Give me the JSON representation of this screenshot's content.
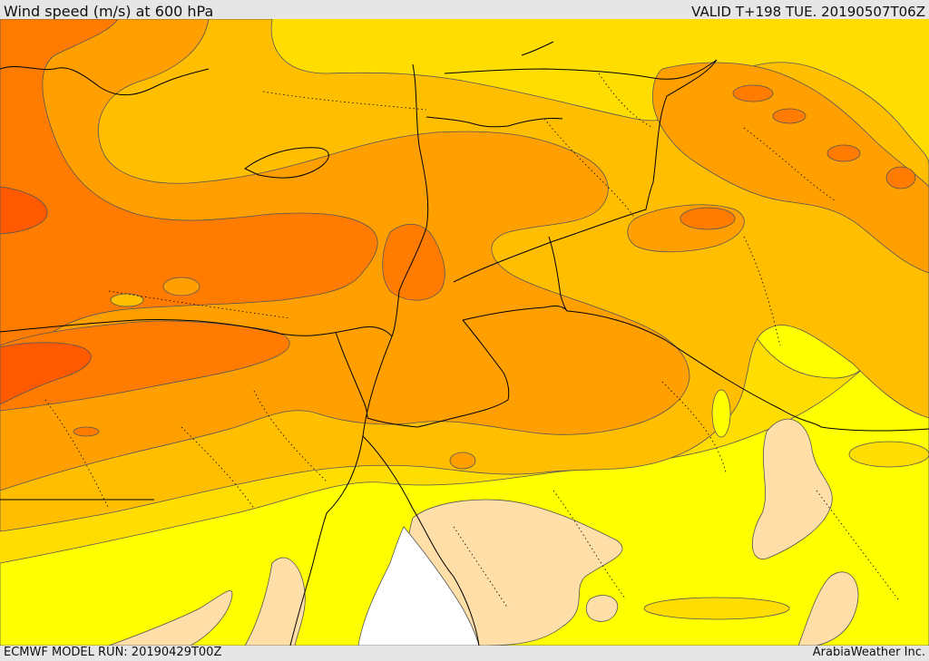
{
  "header": {
    "title": "Wind speed (m/s) at 600 hPa",
    "valid": "VALID T+198 TUE. 20190507T06Z"
  },
  "footer": {
    "model_run": "ECMWF MODEL RUN: 20190429T00Z",
    "credit": "ArabiaWeather Inc."
  },
  "palette": {
    "very_low": "#ffdea8",
    "low": "#ffff00",
    "moderate": "#ffdd00",
    "elevated": "#ffbe00",
    "high": "#ffa000",
    "very_high": "#ff7c00",
    "extreme": "#ff5a00",
    "no_data": "#ffffff",
    "contour_line": "#555555",
    "border_line": "#000000"
  }
}
